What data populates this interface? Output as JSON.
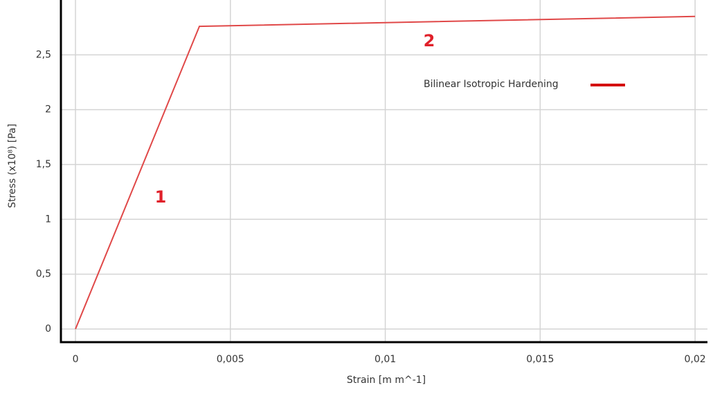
{
  "chart_data": {
    "type": "line",
    "x_label": "Strain [m m^-1]",
    "y_label": "Stress (x10⁸) [Pa]",
    "x": [
      0,
      0.004,
      0.02
    ],
    "series": [
      {
        "name": "Bilinear Isotropic Hardening",
        "color": "#e04848",
        "values": [
          0,
          2.76,
          2.85
        ]
      }
    ],
    "annotations": [
      "1",
      "2"
    ],
    "xlim": [
      -0.00047,
      0.0204
    ],
    "ylim": [
      -0.12,
      3.0
    ],
    "xticks": [
      0,
      {
        "value": 0.005,
        "label": "0,005"
      },
      {
        "value": 0.01,
        "label": "0,01"
      },
      {
        "value": 0.015,
        "label": "0,015"
      },
      {
        "value": 0.02,
        "label": "0,02"
      }
    ],
    "yticks": [
      0,
      {
        "value": 0.5,
        "label": "0,5"
      },
      1,
      {
        "value": 1.5,
        "label": "1,5"
      },
      2,
      {
        "value": 2.5,
        "label": "2,5"
      }
    ],
    "grid": true
  }
}
